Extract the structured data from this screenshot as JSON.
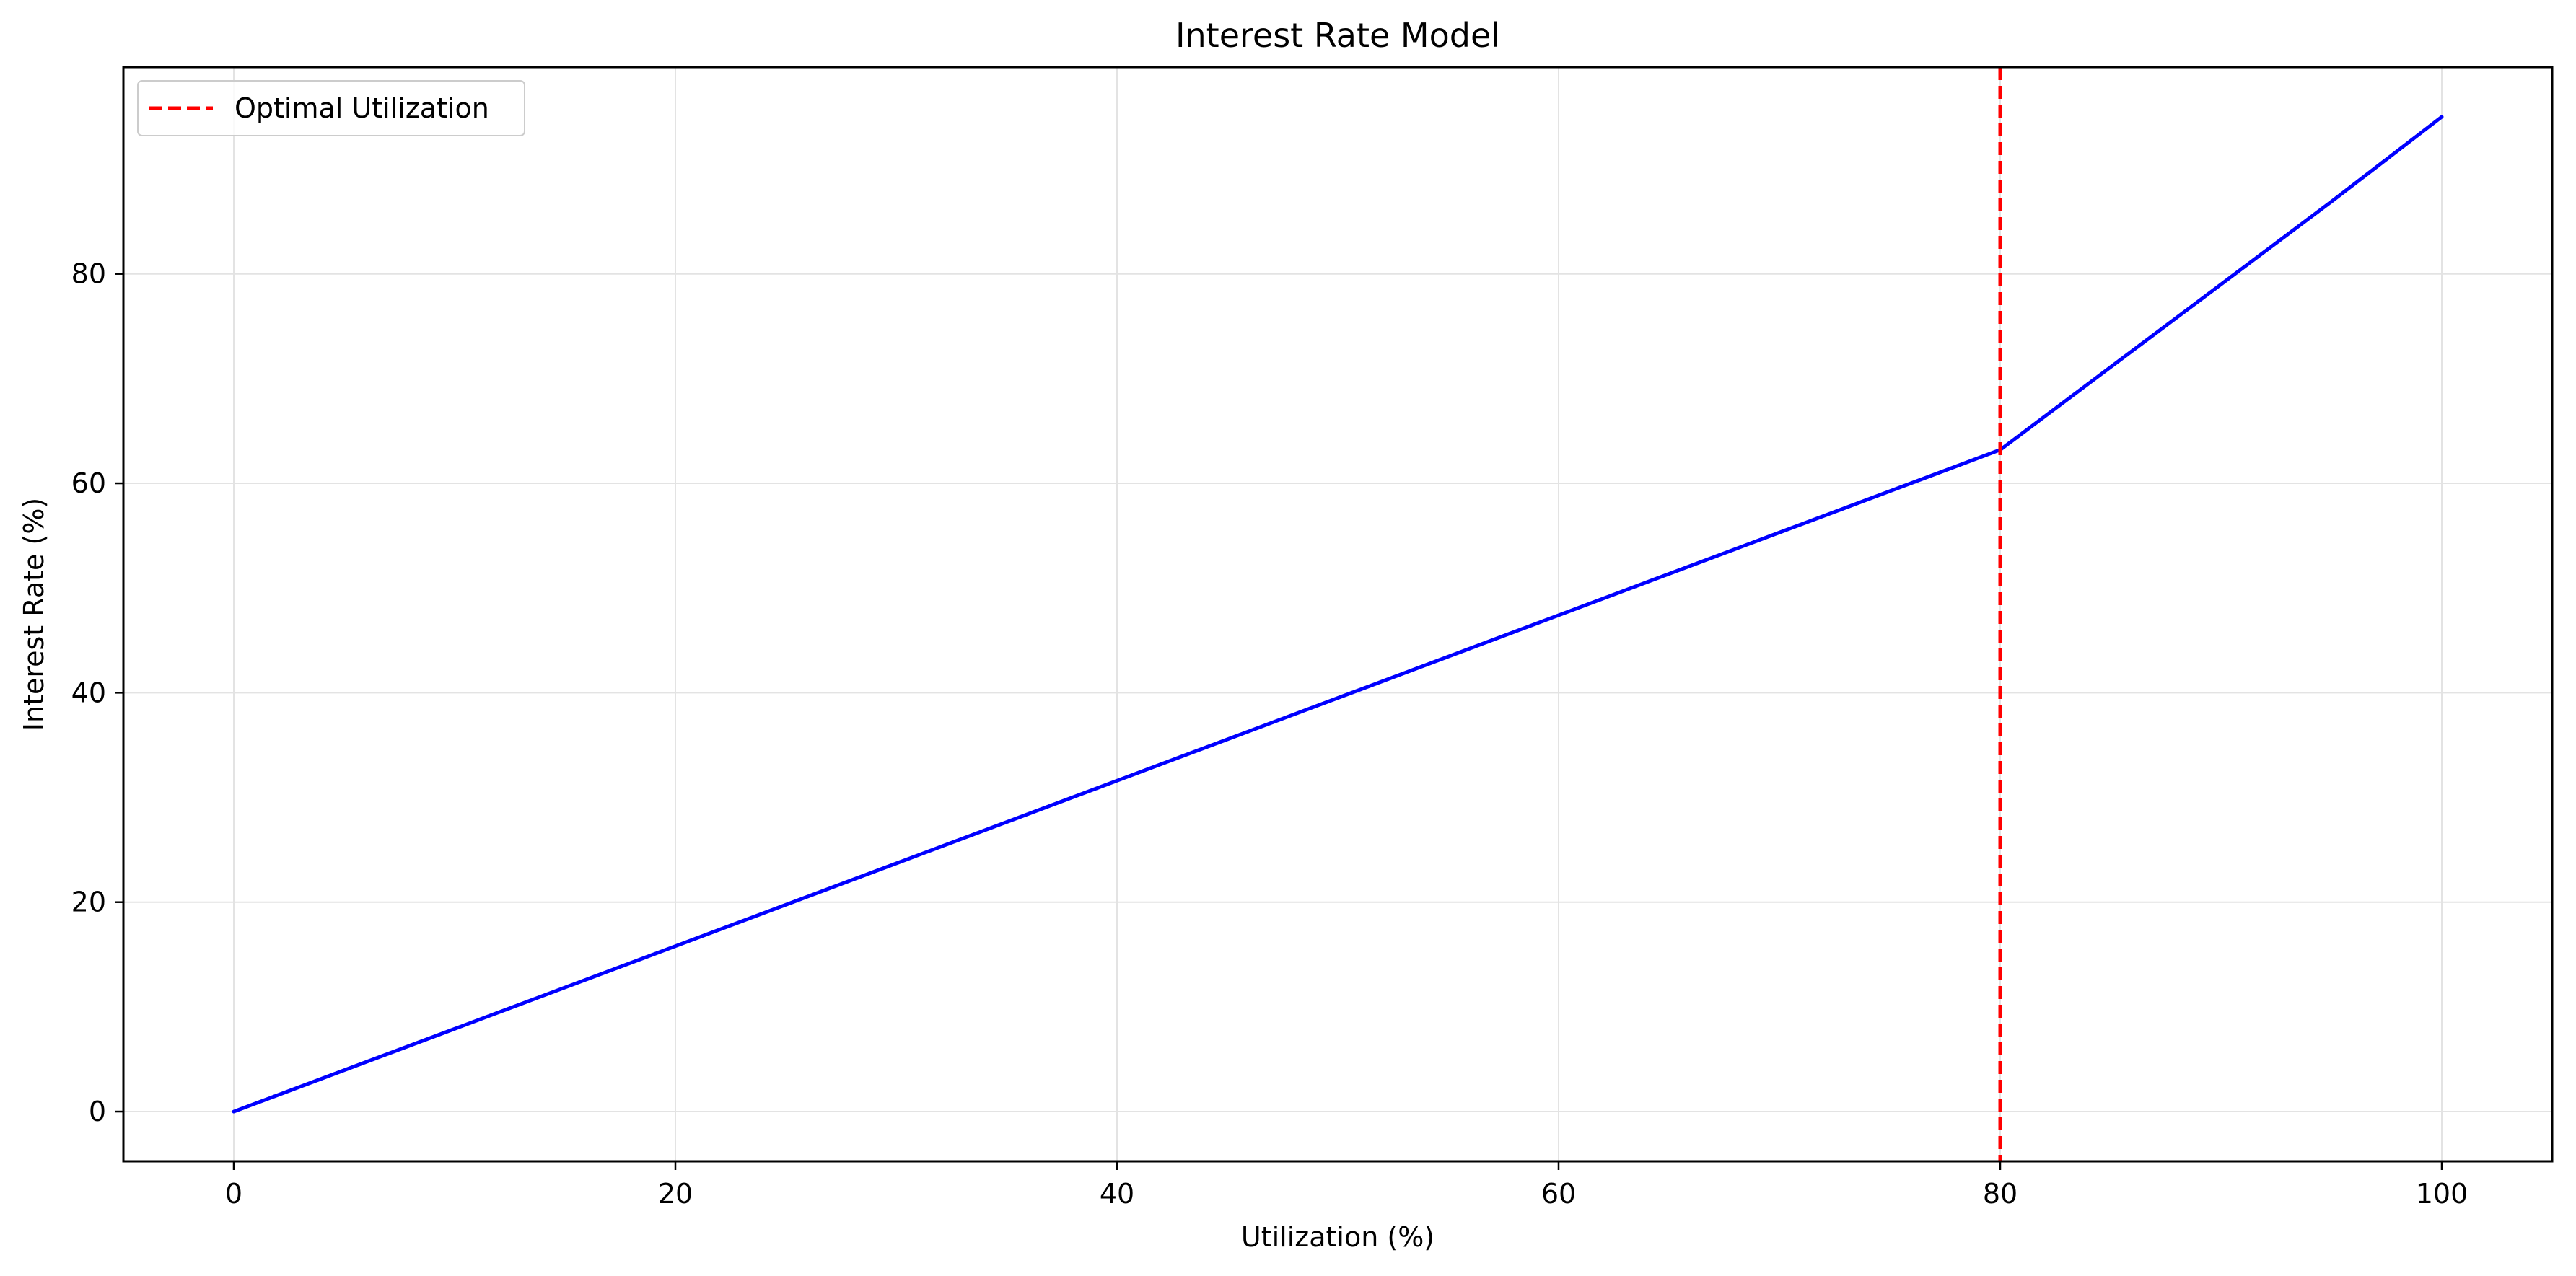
{
  "chart_data": {
    "type": "line",
    "title": "Interest Rate Model",
    "xlabel": "Utilization (%)",
    "ylabel": "Interest Rate (%)",
    "xlim": [
      -5,
      105
    ],
    "ylim": [
      -4.75,
      99.75
    ],
    "x_ticks": [
      0,
      20,
      40,
      60,
      80,
      100
    ],
    "y_ticks": [
      0,
      20,
      40,
      60,
      80
    ],
    "grid": true,
    "legend_position": "upper-left",
    "series": [
      {
        "color": "#0000ff",
        "x": [
          0,
          10,
          20,
          30,
          40,
          50,
          60,
          70,
          80,
          85,
          90,
          95,
          100
        ],
        "y": [
          0,
          7.9,
          15.8,
          23.7,
          31.6,
          39.5,
          47.4,
          55.3,
          63.2,
          71.1,
          79.0,
          86.9,
          95.0
        ]
      }
    ],
    "reference_lines": [
      {
        "name": "Optimal Utilization",
        "orientation": "vertical",
        "x": 80,
        "color": "#ff0000",
        "style": "dashed"
      }
    ]
  }
}
